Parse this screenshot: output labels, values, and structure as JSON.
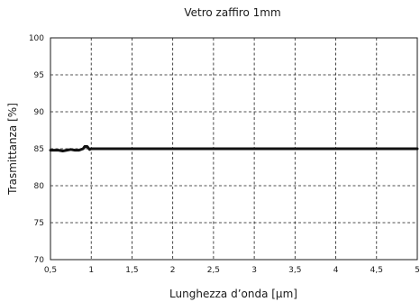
{
  "chart_data": {
    "type": "line",
    "title": "Vetro zaffiro 1mm",
    "xlabel": "Lunghezza d’onda [µm]",
    "ylabel": "Trasmittanza [%]",
    "xlim": [
      0.5,
      5
    ],
    "ylim": [
      70,
      100
    ],
    "x_ticks": [
      0.5,
      1,
      1.5,
      2,
      2.5,
      3,
      3.5,
      4,
      4.5,
      5
    ],
    "x_tick_labels": [
      "0,5",
      "1",
      "1,5",
      "2",
      "2,5",
      "3",
      "3,5",
      "4",
      "4,5",
      "5"
    ],
    "y_ticks": [
      70,
      75,
      80,
      85,
      90,
      95,
      100
    ],
    "y_tick_labels": [
      "70",
      "75",
      "80",
      "85",
      "90",
      "95",
      "100"
    ],
    "grid": true,
    "series": [
      {
        "color": "#111111",
        "x": [
          0.5,
          0.6,
          0.65,
          0.7,
          0.75,
          0.8,
          0.85,
          0.9,
          0.92,
          0.95,
          0.98,
          1.0,
          1.5,
          2.0,
          2.5,
          3.0,
          3.5,
          4.0,
          4.5,
          5.0
        ],
        "y": [
          84.8,
          84.8,
          84.7,
          84.8,
          84.9,
          84.8,
          84.8,
          85.0,
          85.3,
          85.3,
          84.9,
          85.0,
          85.0,
          85.0,
          85.0,
          85.0,
          85.0,
          85.0,
          85.0,
          85.0
        ]
      }
    ]
  }
}
